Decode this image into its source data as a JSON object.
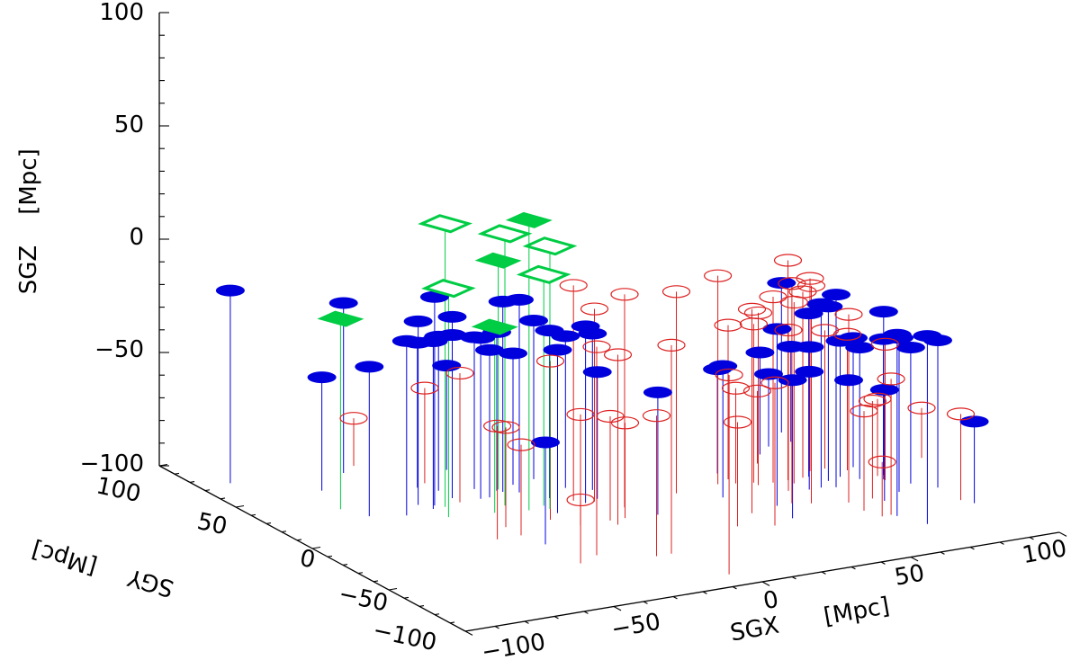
{
  "chart_data": {
    "type": "scatter3d",
    "axes": {
      "x": {
        "label": "SGX",
        "unit": "[Mpc]",
        "range": [
          -100,
          100
        ],
        "ticks": [
          "−100",
          "−50",
          "0",
          "50",
          "100"
        ]
      },
      "y": {
        "label": "SGY",
        "unit": "[Mpc]",
        "range": [
          -100,
          100
        ],
        "ticks": [
          "−100",
          "−50",
          "0",
          "50",
          "100"
        ]
      },
      "z": {
        "label": "SGZ",
        "unit": "[Mpc]",
        "range": [
          -100,
          100
        ],
        "ticks": [
          "−100",
          "−50",
          "0",
          "50",
          "100"
        ]
      }
    },
    "colors": {
      "blue": "#0000dd",
      "red": "#dd2020",
      "green": "#00cc44",
      "axis": "#000000"
    },
    "series": [
      {
        "marker": "filled-ellipse",
        "color": "blue",
        "points": [
          [
            -90,
            73,
            -15
          ],
          [
            -70,
            52,
            -50
          ],
          [
            -70,
            21,
            -34
          ],
          [
            -60,
            16,
            -23
          ],
          [
            -50,
            18,
            -26
          ],
          [
            -40,
            25,
            -28
          ],
          [
            -38,
            -32,
            -55
          ],
          [
            -40,
            34,
            -32
          ],
          [
            -44,
            40,
            -36
          ],
          [
            -56,
            65,
            -25
          ],
          [
            -33,
            20,
            -29
          ],
          [
            -25,
            25,
            -30
          ],
          [
            -30,
            30,
            -33
          ],
          [
            -20,
            -5,
            -28
          ],
          [
            -24,
            23,
            -16
          ],
          [
            -10,
            30,
            -30
          ],
          [
            -6,
            17,
            -33
          ],
          [
            0,
            11,
            -31
          ],
          [
            -15,
            10,
            -26
          ],
          [
            -20,
            20,
            -15
          ],
          [
            -3,
            2,
            -44
          ],
          [
            -28,
            52,
            -54
          ],
          [
            30,
            -16,
            -42
          ],
          [
            5,
            -22,
            -46
          ],
          [
            -52,
            24,
            -19
          ],
          [
            -48,
            21,
            -8
          ],
          [
            -40,
            25,
            -20
          ],
          [
            -30,
            20,
            -35
          ],
          [
            -18,
            28,
            -42
          ],
          [
            -8,
            0,
            -22
          ],
          [
            38,
            -46,
            -39
          ],
          [
            40,
            -32,
            -22
          ],
          [
            70,
            -72,
            -17
          ],
          [
            56,
            -22,
            -48
          ],
          [
            60,
            -40,
            -46
          ],
          [
            65,
            -17,
            -23
          ],
          [
            64,
            -24,
            -15
          ],
          [
            62,
            -10,
            -28
          ],
          [
            66,
            -60,
            -20
          ],
          [
            70,
            -15,
            -40
          ],
          [
            74,
            -20,
            -42
          ],
          [
            78,
            -38,
            -32
          ],
          [
            80,
            -24,
            -26
          ],
          [
            70,
            5,
            -50
          ],
          [
            60,
            18,
            -55
          ],
          [
            66,
            24,
            -68
          ],
          [
            74,
            25,
            -58
          ],
          [
            76,
            35,
            -34
          ],
          [
            85,
            -32,
            -40
          ],
          [
            92,
            -60,
            -64
          ],
          [
            82,
            -20,
            -40
          ],
          [
            78,
            -8,
            -43
          ],
          [
            60,
            -22,
            -19
          ],
          [
            90,
            -40,
            -35
          ],
          [
            40,
            7,
            -54
          ],
          [
            70,
            -44,
            -51
          ]
        ]
      },
      {
        "marker": "open-ellipse",
        "color": "red",
        "points": [
          [
            -40,
            43,
            -58
          ],
          [
            -40,
            20,
            -43
          ],
          [
            -40,
            -20,
            -60
          ],
          [
            -48,
            -20,
            -50
          ],
          [
            -40,
            -10,
            -56
          ],
          [
            -50,
            70,
            -79
          ],
          [
            -20,
            -20,
            -51
          ],
          [
            -10,
            -20,
            -54
          ],
          [
            -30,
            -50,
            -8
          ],
          [
            -38,
            -55,
            -72
          ],
          [
            -25,
            -10,
            -30
          ],
          [
            -10,
            4,
            -5
          ],
          [
            -10,
            -60,
            -8
          ],
          [
            -5,
            -20,
            -58
          ],
          [
            -10,
            -25,
            -25
          ],
          [
            0,
            -10,
            -6
          ],
          [
            -5,
            0,
            -15
          ],
          [
            -15,
            -60,
            -38
          ],
          [
            -5,
            -88,
            -12
          ],
          [
            20,
            -5,
            -11
          ],
          [
            30,
            -50,
            -37
          ],
          [
            20,
            -45,
            -54
          ],
          [
            35,
            -3,
            -8
          ],
          [
            30,
            -35,
            -10
          ],
          [
            45,
            -32,
            -3
          ],
          [
            40,
            -5,
            -58
          ],
          [
            50,
            -35,
            -4
          ],
          [
            50,
            -10,
            -18
          ],
          [
            45,
            -7,
            -30
          ],
          [
            55,
            -10,
            -3
          ],
          [
            55,
            -14,
            -20
          ],
          [
            60,
            -40,
            -17
          ],
          [
            80,
            -25,
            -40
          ],
          [
            40,
            0,
            -32
          ],
          [
            50,
            -20,
            -29
          ],
          [
            45,
            -10,
            -24
          ],
          [
            60,
            -10,
            -18
          ],
          [
            65,
            -5,
            -15
          ],
          [
            55,
            10,
            -68
          ],
          [
            70,
            -5,
            -39
          ],
          [
            75,
            -10,
            -40
          ],
          [
            80,
            -20,
            -66
          ],
          [
            90,
            -55,
            -62
          ],
          [
            100,
            -10,
            -78
          ],
          [
            65,
            -58,
            -40
          ],
          [
            68,
            -40,
            -57
          ],
          [
            62,
            -58,
            -76
          ],
          [
            60,
            -50,
            -56
          ]
        ]
      },
      {
        "marker": "filled-diamond",
        "color": "green",
        "points": [
          [
            -74,
            32,
            -16
          ],
          [
            -24,
            26,
            1
          ],
          [
            -26,
            2,
            28
          ],
          [
            -36,
            5,
            -18
          ]
        ]
      },
      {
        "marker": "open-diamond",
        "color": "green",
        "points": [
          [
            -50,
            8,
            1
          ],
          [
            -46,
            18,
            25
          ],
          [
            -30,
            10,
            20
          ],
          [
            -20,
            4,
            2
          ],
          [
            -20,
            0,
            16
          ]
        ]
      }
    ]
  }
}
